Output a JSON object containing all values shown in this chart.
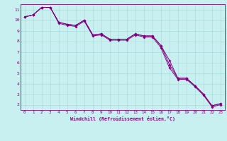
{
  "xlabel": "Windchill (Refroidissement éolien,°C)",
  "background_color": "#c8f0f0",
  "line_color": "#800080",
  "grid_color": "#aadcdc",
  "text_color": "#800080",
  "xlim": [
    -0.5,
    23.5
  ],
  "ylim": [
    1.5,
    11.5
  ],
  "xticks": [
    0,
    1,
    2,
    3,
    4,
    5,
    6,
    7,
    8,
    9,
    10,
    11,
    12,
    13,
    14,
    15,
    16,
    17,
    18,
    19,
    20,
    21,
    22,
    23
  ],
  "yticks": [
    2,
    3,
    4,
    5,
    6,
    7,
    8,
    9,
    10,
    11
  ],
  "line1_x": [
    0,
    1,
    2,
    3,
    4,
    5,
    6,
    7,
    8,
    9,
    10,
    11,
    12,
    13,
    14,
    15,
    16,
    17,
    18,
    19,
    20,
    21,
    22,
    23
  ],
  "line1_y": [
    10.3,
    10.5,
    11.2,
    11.2,
    9.8,
    9.6,
    9.5,
    10.0,
    8.6,
    8.7,
    8.2,
    8.2,
    8.2,
    8.7,
    8.5,
    8.5,
    7.6,
    6.2,
    4.5,
    4.5,
    3.8,
    3.0,
    1.9,
    2.1
  ],
  "line2_x": [
    0,
    1,
    2,
    3,
    4,
    5,
    6,
    7,
    8,
    9,
    10,
    11,
    12,
    13,
    14,
    15,
    16,
    17,
    18,
    19,
    20,
    21,
    22,
    23
  ],
  "line2_y": [
    10.3,
    10.5,
    11.2,
    11.2,
    9.8,
    9.6,
    9.5,
    10.0,
    8.6,
    8.7,
    8.2,
    8.2,
    8.2,
    8.7,
    8.5,
    8.5,
    7.6,
    5.8,
    4.5,
    4.5,
    3.8,
    3.0,
    1.9,
    2.1
  ],
  "line3_x": [
    0,
    1,
    2,
    3,
    4,
    5,
    6,
    7,
    8,
    9,
    10,
    11,
    12,
    13,
    14,
    15,
    16,
    17,
    18,
    19,
    20,
    21,
    22,
    23
  ],
  "line3_y": [
    10.3,
    10.5,
    11.2,
    11.2,
    9.7,
    9.5,
    9.4,
    9.9,
    8.5,
    8.6,
    8.1,
    8.1,
    8.1,
    8.6,
    8.4,
    8.4,
    7.4,
    5.5,
    4.4,
    4.4,
    3.7,
    2.9,
    1.8,
    2.0
  ]
}
